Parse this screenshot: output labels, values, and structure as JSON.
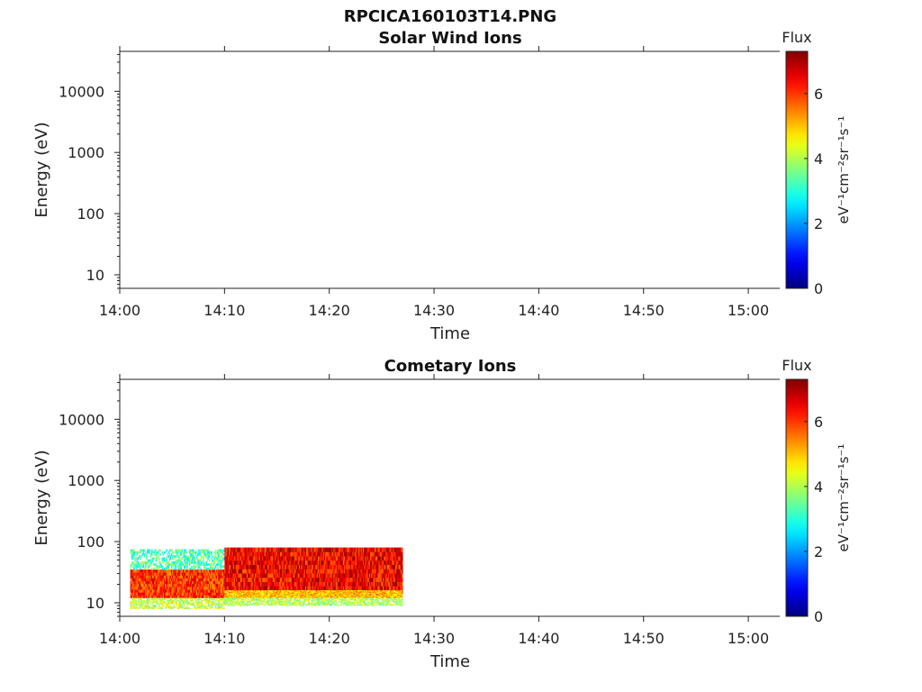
{
  "figure_title": "RPCICA160103T14.PNG",
  "chart_data": [
    {
      "type": "heatmap",
      "title": "Solar Wind Ions",
      "xlabel": "Time",
      "ylabel": "Energy (eV)",
      "yscale": "log",
      "ylim": [
        6,
        45000
      ],
      "xlim": [
        "14:00",
        "15:03"
      ],
      "x_ticks": [
        "14:00",
        "14:10",
        "14:20",
        "14:30",
        "14:40",
        "14:50",
        "15:00"
      ],
      "y_ticks": [
        {
          "value": 10,
          "label": "10"
        },
        {
          "value": 100,
          "label": "100"
        },
        {
          "value": 1000,
          "label": "1000"
        },
        {
          "value": 10000,
          "label": "10000"
        }
      ],
      "colorbar": {
        "label": "Flux",
        "units": "eV⁻¹cm⁻²sr⁻¹s⁻¹",
        "range": [
          0,
          7.3
        ],
        "ticks": [
          "0",
          "2",
          "4",
          "6"
        ],
        "colormap": "jet"
      },
      "data": []
    },
    {
      "type": "heatmap",
      "title": "Cometary Ions",
      "xlabel": "Time",
      "ylabel": "Energy (eV)",
      "yscale": "log",
      "ylim": [
        6,
        45000
      ],
      "xlim": [
        "14:00",
        "15:03"
      ],
      "x_ticks": [
        "14:00",
        "14:10",
        "14:20",
        "14:30",
        "14:40",
        "14:50",
        "15:00"
      ],
      "y_ticks": [
        {
          "value": 10,
          "label": "10"
        },
        {
          "value": 100,
          "label": "100"
        },
        {
          "value": 1000,
          "label": "1000"
        },
        {
          "value": 10000,
          "label": "10000"
        }
      ],
      "colorbar": {
        "label": "Flux",
        "units": "eV⁻¹cm⁻²sr⁻¹s⁻¹",
        "range": [
          0,
          7.3
        ],
        "ticks": [
          "0",
          "2",
          "4",
          "6"
        ],
        "colormap": "jet"
      },
      "data": [
        {
          "time_range": [
            "14:01",
            "14:10"
          ],
          "energy_range": [
            12,
            35
          ],
          "flux": 6.0
        },
        {
          "time_range": [
            "14:01",
            "14:10"
          ],
          "energy_range": [
            35,
            75
          ],
          "flux": 3.3
        },
        {
          "time_range": [
            "14:01",
            "14:10"
          ],
          "energy_range": [
            8,
            12
          ],
          "flux": 4.2
        },
        {
          "time_range": [
            "14:10",
            "14:27"
          ],
          "energy_range": [
            16,
            80
          ],
          "flux": 6.4
        },
        {
          "time_range": [
            "14:10",
            "14:27"
          ],
          "energy_range": [
            12,
            16
          ],
          "flux": 5.0
        },
        {
          "time_range": [
            "14:10",
            "14:27"
          ],
          "energy_range": [
            9,
            12
          ],
          "flux": 4.0
        }
      ]
    }
  ]
}
